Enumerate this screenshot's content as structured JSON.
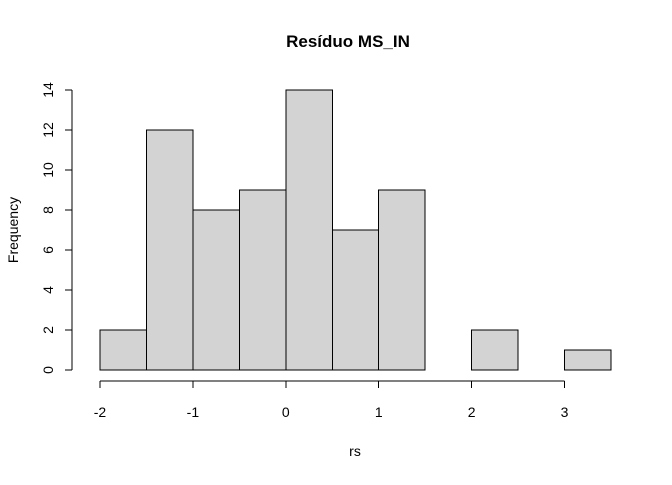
{
  "chart_data": {
    "type": "bar",
    "title": "Resíduo  MS_IN",
    "xlabel": "rs",
    "ylabel": "Frequency",
    "bins": [
      {
        "start": -2.0,
        "end": -1.5,
        "count": 2
      },
      {
        "start": -1.5,
        "end": -1.0,
        "count": 12
      },
      {
        "start": -1.0,
        "end": -0.5,
        "count": 8
      },
      {
        "start": -0.5,
        "end": 0.0,
        "count": 9
      },
      {
        "start": 0.0,
        "end": 0.5,
        "count": 14
      },
      {
        "start": 0.5,
        "end": 1.0,
        "count": 7
      },
      {
        "start": 1.0,
        "end": 1.5,
        "count": 9
      },
      {
        "start": 1.5,
        "end": 2.0,
        "count": 0
      },
      {
        "start": 2.0,
        "end": 2.5,
        "count": 2
      },
      {
        "start": 2.5,
        "end": 3.0,
        "count": 0
      },
      {
        "start": 3.0,
        "end": 3.5,
        "count": 1
      }
    ],
    "x_ticks": [
      -2,
      -1,
      0,
      1,
      2,
      3
    ],
    "x_tick_labels": [
      "-2",
      "-1",
      "0",
      "1",
      "2",
      "3"
    ],
    "y_ticks": [
      0,
      2,
      4,
      6,
      8,
      10,
      12,
      14
    ],
    "y_tick_labels": [
      "0",
      "2",
      "4",
      "6",
      "8",
      "10",
      "12",
      "14"
    ],
    "xlim": [
      -2,
      3.5
    ],
    "ylim": [
      0,
      14
    ],
    "bar_fill": "#d3d3d3",
    "bar_stroke": "#000000",
    "grid": false,
    "legend": "none"
  }
}
